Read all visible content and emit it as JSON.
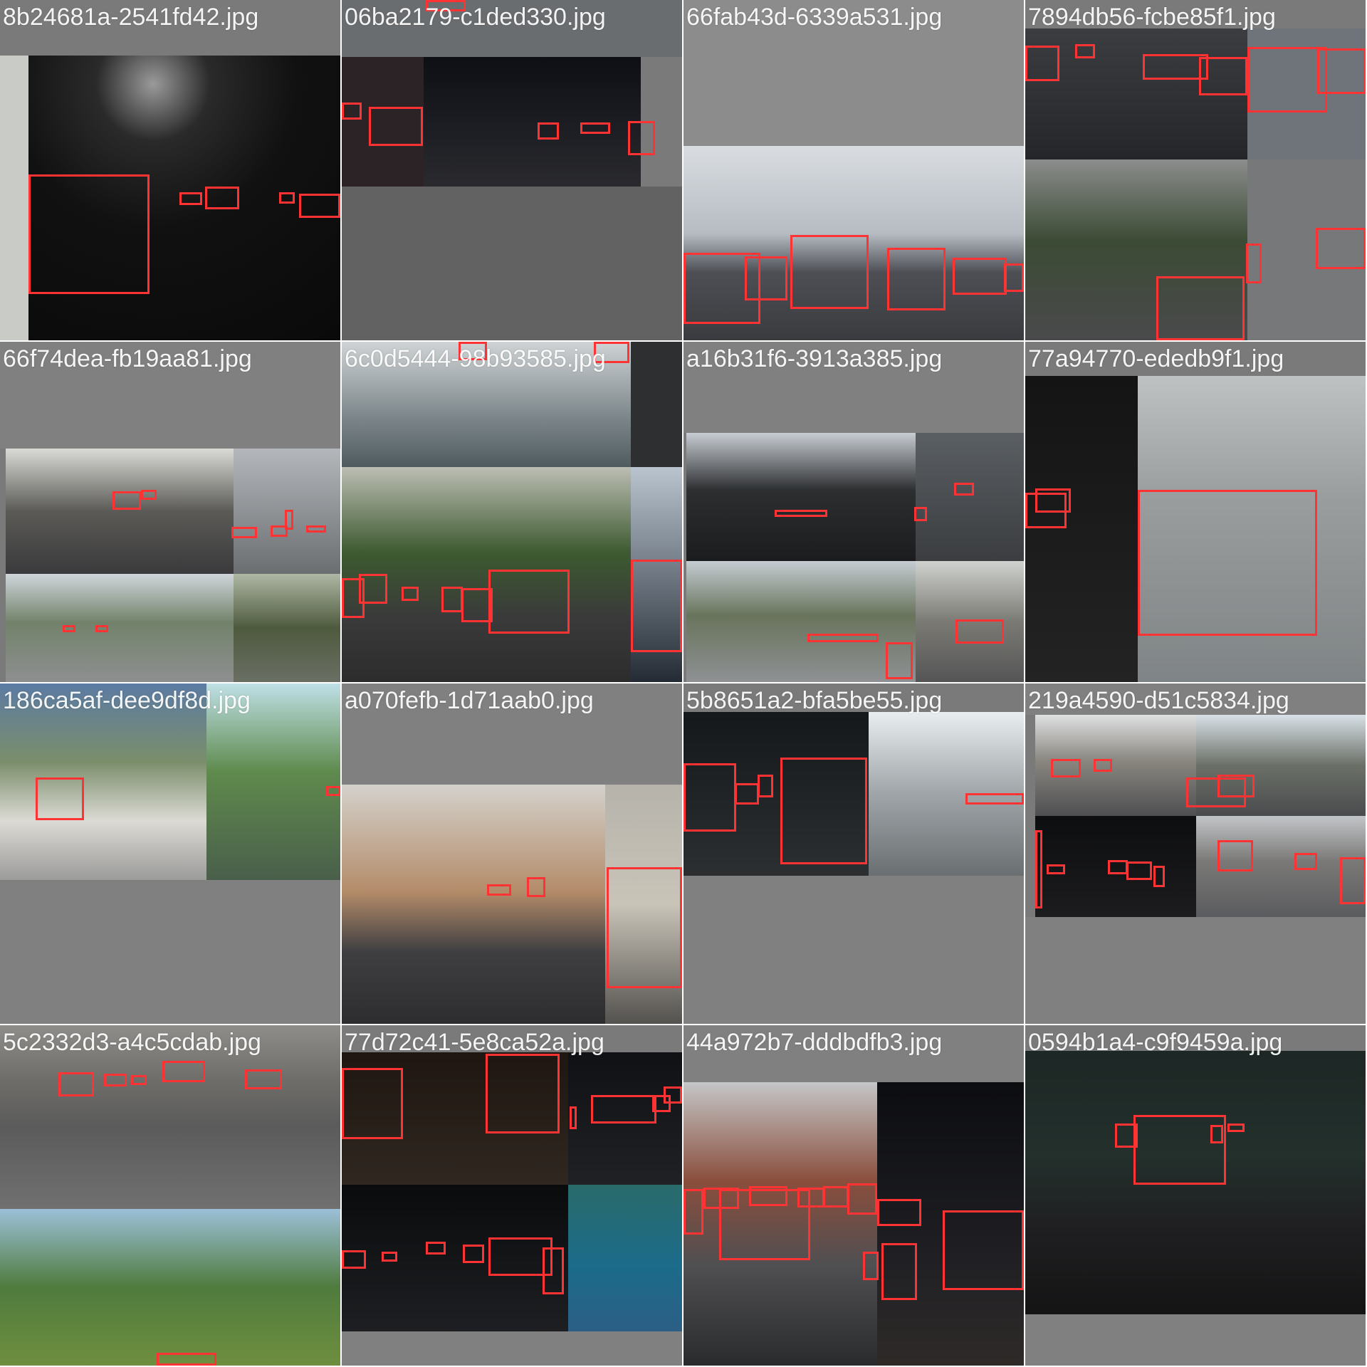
{
  "colors": {
    "tile_background": "#7a7a7a",
    "box_color": "#ff3333",
    "label_color": "#ffffff"
  },
  "tiles": [
    {
      "filename": "8b24681a-2541fd42.jpg"
    },
    {
      "filename": "06ba2179-c1ded330.jpg"
    },
    {
      "filename": "66fab43d-6339a531.jpg"
    },
    {
      "filename": "7894db56-fcbe85f1.jpg"
    },
    {
      "filename": "66f74dea-fb19aa81.jpg"
    },
    {
      "filename": "6c0d5444-98b93585.jpg"
    },
    {
      "filename": "a16b31f6-3913a385.jpg"
    },
    {
      "filename": "77a94770-ededb9f1.jpg"
    },
    {
      "filename": "186ca5af-dee9df8d.jpg"
    },
    {
      "filename": "a070fefb-1d71aab0.jpg"
    },
    {
      "filename": "5b8651a2-bfa5be55.jpg"
    },
    {
      "filename": "219a4590-d51c5834.jpg"
    },
    {
      "filename": "5c2332d3-a4c5cdab.jpg"
    },
    {
      "filename": "77d72c41-5e8ca52a.jpg"
    },
    {
      "filename": "44a972b7-dddbdfb3.jpg"
    },
    {
      "filename": "0594b1a4-c9f9459a.jpg"
    }
  ]
}
